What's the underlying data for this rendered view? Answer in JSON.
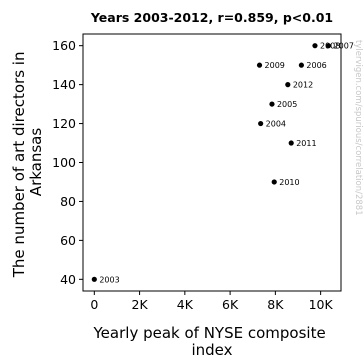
{
  "chart_data": {
    "type": "scatter",
    "title": "Years 2003-2012, r=0.859, p<0.01",
    "xlabel": "Yearly peak of NYSE composite index",
    "xlabel_lines": [
      "Yearly peak of NYSE composite",
      "index"
    ],
    "ylabel": "The number of art directors in Arkansas",
    "ylabel_lines": [
      "The number of art directors in",
      "Arkansas"
    ],
    "xlim": [
      -500,
      10900
    ],
    "ylim": [
      34,
      166
    ],
    "x_ticks": [
      0,
      2000,
      4000,
      6000,
      8000,
      10000
    ],
    "x_tick_labels": [
      "0",
      "2K",
      "4K",
      "6K",
      "8K",
      "10K"
    ],
    "y_ticks": [
      40,
      60,
      80,
      100,
      120,
      140,
      160
    ],
    "y_tick_labels": [
      "40",
      "60",
      "80",
      "100",
      "120",
      "140",
      "160"
    ],
    "grid": false,
    "point_color": "#000000",
    "points": [
      {
        "label": "2003",
        "x": 0,
        "y": 40
      },
      {
        "label": "2004",
        "x": 7350,
        "y": 120
      },
      {
        "label": "2005",
        "x": 7850,
        "y": 130
      },
      {
        "label": "2006",
        "x": 9150,
        "y": 150
      },
      {
        "label": "2007",
        "x": 10350,
        "y": 160
      },
      {
        "label": "2008",
        "x": 9750,
        "y": 160
      },
      {
        "label": "2009",
        "x": 7300,
        "y": 150
      },
      {
        "label": "2010",
        "x": 7950,
        "y": 90
      },
      {
        "label": "2011",
        "x": 8700,
        "y": 110
      },
      {
        "label": "2012",
        "x": 8550,
        "y": 140
      }
    ]
  },
  "watermark": "tylervigen.com/spurious/correlation/2881"
}
